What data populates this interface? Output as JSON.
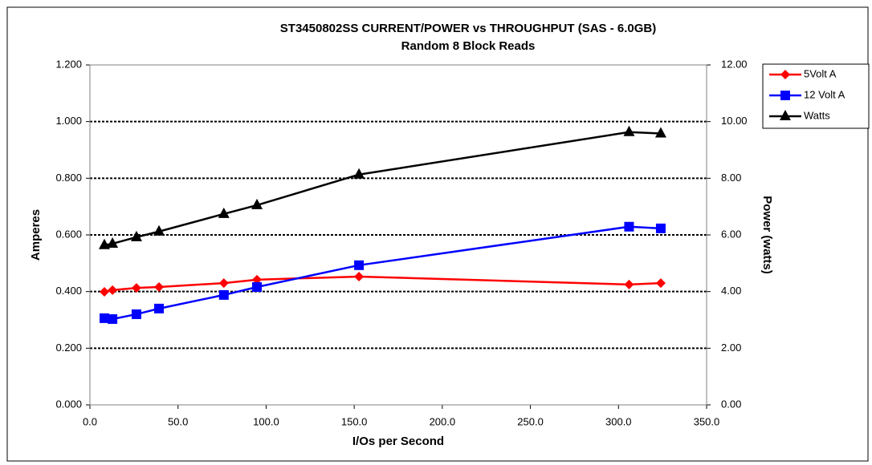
{
  "chart_data": {
    "type": "line",
    "title": "ST3450802SS CURRENT/POWER vs THROUGHPUT (SAS - 6.0GB)",
    "subtitle": "Random 8 Block Reads",
    "x_label": "I/Os per Second",
    "y_label": "Amperes",
    "y2_label": "Power (watts)",
    "x": [
      8.2,
      12.8,
      26.4,
      39.2,
      76.0,
      94.8,
      152.7,
      306.0,
      324.0
    ],
    "series": [
      {
        "name": "5Volt A",
        "color": "#ff0000",
        "marker": "diamond",
        "values": [
          0.399,
          0.405,
          0.413,
          0.416,
          0.43,
          0.442,
          0.453,
          0.425,
          0.43
        ]
      },
      {
        "name": "12 Volt A",
        "color": "#0000ff",
        "marker": "square",
        "values": [
          0.306,
          0.303,
          0.32,
          0.34,
          0.388,
          0.416,
          0.493,
          0.629,
          0.623
        ]
      },
      {
        "name": "Watts",
        "color": "#000000",
        "marker": "triangle",
        "axis": "y2",
        "values": [
          5.64,
          5.69,
          5.92,
          6.12,
          6.74,
          7.05,
          8.13,
          9.63,
          9.58
        ]
      }
    ],
    "xlim": [
      0,
      350
    ],
    "xticks": [
      {
        "value": 0,
        "label": "0.0"
      },
      {
        "value": 50,
        "label": "50.0"
      },
      {
        "value": 100,
        "label": "100.0"
      },
      {
        "value": 150,
        "label": "150.0"
      },
      {
        "value": 200,
        "label": "200.0"
      },
      {
        "value": 250,
        "label": "250.0"
      },
      {
        "value": 300,
        "label": "300.0"
      },
      {
        "value": 350,
        "label": "350.0"
      }
    ],
    "ylim": [
      0,
      1.2
    ],
    "yticks": [
      {
        "value": 0,
        "label": "0.000"
      },
      {
        "value": 0.2,
        "label": "0.200"
      },
      {
        "value": 0.4,
        "label": "0.400"
      },
      {
        "value": 0.6,
        "label": "0.600"
      },
      {
        "value": 0.8,
        "label": "0.800"
      },
      {
        "value": 1.0,
        "label": "1.000"
      },
      {
        "value": 1.2,
        "label": "1.200"
      }
    ],
    "y2lim": [
      0,
      12
    ],
    "y2ticks": [
      {
        "value": 0,
        "label": "0.00"
      },
      {
        "value": 2,
        "label": "2.00"
      },
      {
        "value": 4,
        "label": "4.00"
      },
      {
        "value": 6,
        "label": "6.00"
      },
      {
        "value": 8,
        "label": "8.00"
      },
      {
        "value": 10,
        "label": "10.00"
      },
      {
        "value": 12,
        "label": "12.00"
      }
    ],
    "grid": true,
    "legend": "right"
  }
}
